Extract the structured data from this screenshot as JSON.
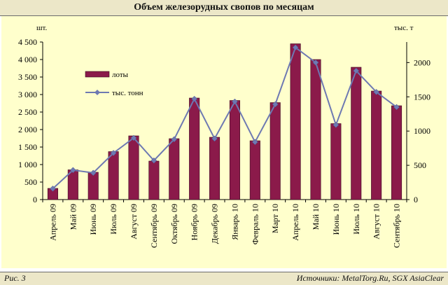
{
  "title": "Объем железорудных свопов по месяцам",
  "footer": {
    "figure_label": "Рис. 3",
    "sources": "Источники: MetalTorg.Ru, SGX AsiaClear"
  },
  "colors": {
    "bar": "#8b1a4a",
    "line": "#6e79b2",
    "plot_bg": "#ffffcc",
    "header_bg": "#ece7c8"
  },
  "chart_data": {
    "type": "bar",
    "categories": [
      "Апрель 09",
      "Май 09",
      "Июнь 09",
      "Июль 09",
      "Август 09",
      "Сентябрь 09",
      "Октябрь 09",
      "Ноябрь 09",
      "Декабрь 09",
      "Январь 10",
      "Февраль 10",
      "Март 10",
      "Апрель 10",
      "Май 10",
      "Июнь 10",
      "Июль 10",
      "Август 10",
      "Сентябрь 10"
    ],
    "y_left": {
      "unit_label": "шт.",
      "ylim": [
        0,
        4500
      ],
      "ticks": [
        "0",
        "500",
        "1 000",
        "1 500",
        "2 000",
        "2 500",
        "3 000",
        "3 500",
        "4 000",
        "4 500"
      ]
    },
    "y_right": {
      "unit_label": "тыс. т",
      "ylim": [
        0,
        2300
      ],
      "ticks": [
        "0",
        "500",
        "1000",
        "1500",
        "2000"
      ]
    },
    "series": [
      {
        "name": "лоты",
        "type": "bar",
        "axis": "left",
        "values": [
          320,
          850,
          780,
          1370,
          1820,
          1100,
          1740,
          2900,
          1780,
          2830,
          1680,
          2770,
          4450,
          4000,
          2170,
          3780,
          3100,
          2680
        ]
      },
      {
        "name": "тыс. тонн",
        "type": "line",
        "axis": "right",
        "values": [
          160,
          430,
          390,
          680,
          900,
          570,
          880,
          1470,
          890,
          1430,
          840,
          1390,
          2220,
          2000,
          1090,
          1880,
          1570,
          1350
        ]
      }
    ],
    "legend_position": "upper-left inside",
    "grid": false
  }
}
